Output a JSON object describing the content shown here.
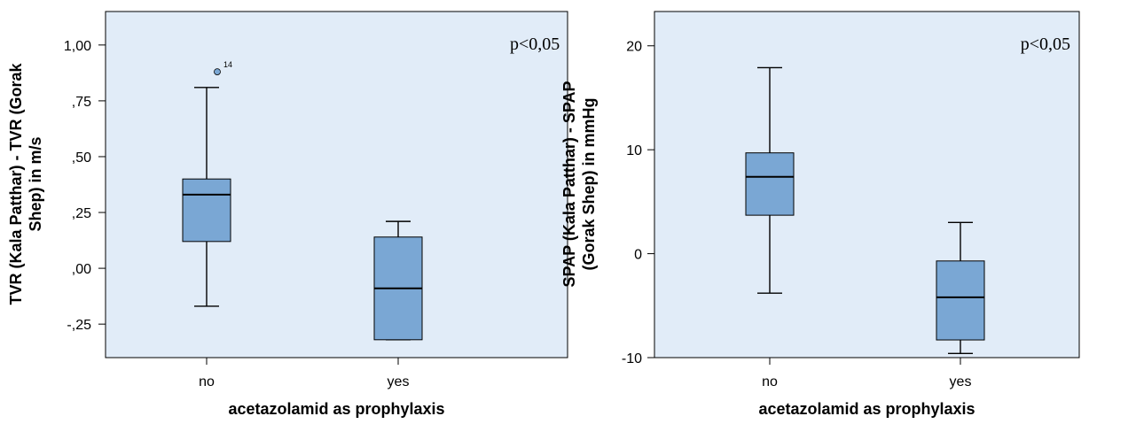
{
  "chart_data": [
    {
      "type": "boxplot",
      "xlabel": "acetazolamid as prophylaxis",
      "ylabel_lines": [
        "TVR (Kala Patthar) - TVR (Gorak",
        "Shep) in m/s"
      ],
      "annotation": "p<0,05",
      "categories": [
        "no",
        "yes"
      ],
      "yticks": [
        {
          "value": 1.0,
          "label": "1,00"
        },
        {
          "value": 0.75,
          "label": ",75"
        },
        {
          "value": 0.5,
          "label": ",50"
        },
        {
          "value": 0.25,
          "label": ",25"
        },
        {
          "value": 0.0,
          "label": ",00"
        },
        {
          "value": -0.25,
          "label": "-,25"
        }
      ],
      "ylim": [
        -0.4,
        1.15
      ],
      "boxes": [
        {
          "category": "no",
          "whisker_low": -0.17,
          "q1": 0.12,
          "median": 0.33,
          "q3": 0.4,
          "whisker_high": 0.81
        },
        {
          "category": "yes",
          "whisker_low": -0.32,
          "q1": -0.32,
          "median": -0.09,
          "q3": 0.14,
          "whisker_high": 0.21
        }
      ],
      "outliers": [
        {
          "category": "no",
          "value": 0.88,
          "label": "14"
        }
      ],
      "colors": {
        "plot_bg": "#e1ecf8",
        "box_fill": "#7aa7d4",
        "outlier_fill": "#7aa7d4"
      }
    },
    {
      "type": "boxplot",
      "xlabel": "acetazolamid as prophylaxis",
      "ylabel_lines": [
        "SPAP (Kala Patthar) - SPAP",
        "(Gorak Shep) in mmHg"
      ],
      "annotation": "p<0,05",
      "categories": [
        "no",
        "yes"
      ],
      "yticks": [
        {
          "value": 20,
          "label": "20"
        },
        {
          "value": 10,
          "label": "10"
        },
        {
          "value": 0,
          "label": "0"
        },
        {
          "value": -10,
          "label": "-10"
        }
      ],
      "ylim": [
        -10,
        23.3
      ],
      "boxes": [
        {
          "category": "no",
          "whisker_low": -3.8,
          "q1": 3.7,
          "median": 7.4,
          "q3": 9.7,
          "whisker_high": 17.9
        },
        {
          "category": "yes",
          "whisker_low": -9.6,
          "q1": -8.3,
          "median": -4.2,
          "q3": -0.7,
          "whisker_high": 3.0
        }
      ],
      "outliers": [],
      "colors": {
        "plot_bg": "#e1ecf8",
        "box_fill": "#7aa7d4",
        "outlier_fill": "#7aa7d4"
      }
    }
  ]
}
